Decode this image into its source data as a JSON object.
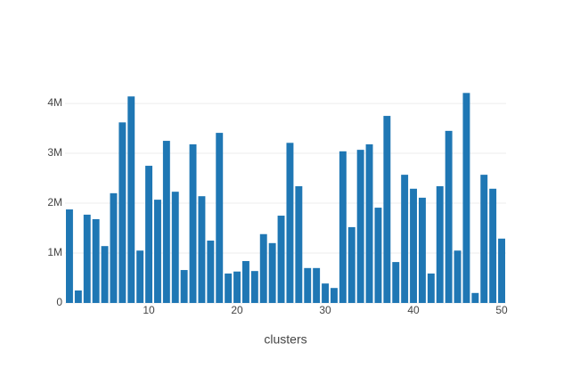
{
  "chart_data": {
    "type": "bar",
    "x_label": "clusters",
    "x": [
      1,
      2,
      3,
      4,
      5,
      6,
      7,
      8,
      9,
      10,
      11,
      12,
      13,
      14,
      15,
      16,
      17,
      18,
      19,
      20,
      21,
      22,
      23,
      24,
      25,
      26,
      27,
      28,
      29,
      30,
      31,
      32,
      33,
      34,
      35,
      36,
      37,
      38,
      39,
      40,
      41,
      42,
      43,
      44,
      45,
      46,
      47,
      48,
      49,
      50
    ],
    "values": [
      1875000,
      250000,
      1770000,
      1680000,
      1140000,
      2200000,
      3620000,
      4140000,
      1050000,
      2750000,
      2070000,
      3250000,
      2230000,
      660000,
      3180000,
      2140000,
      1250000,
      3410000,
      590000,
      630000,
      840000,
      640000,
      1380000,
      1200000,
      1750000,
      3210000,
      2340000,
      700000,
      700000,
      390000,
      300000,
      3040000,
      1520000,
      3070000,
      3180000,
      1910000,
      3750000,
      820000,
      2570000,
      2290000,
      2110000,
      590000,
      2340000,
      3450000,
      1050000,
      4210000,
      200000,
      2570000,
      2290000,
      1290000
    ],
    "color": "#1f77b4",
    "xlim": [
      0.5,
      50.5
    ],
    "xticks": [
      10,
      20,
      30,
      40,
      50
    ],
    "ylim": [
      0,
      4430000
    ],
    "yticks": [
      0,
      {
        "value": 1000000,
        "label": "1M"
      },
      {
        "value": 2000000,
        "label": "2M"
      },
      {
        "value": 3000000,
        "label": "3M"
      },
      {
        "value": 4000000,
        "label": "4M"
      }
    ],
    "grid": true
  }
}
